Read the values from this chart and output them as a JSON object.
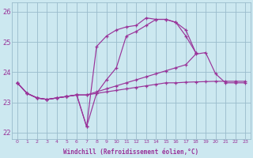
{
  "xlabel": "Windchill (Refroidissement éolien,°C)",
  "bg_color": "#cce8f0",
  "line_color": "#993399",
  "grid_color": "#99bbcc",
  "xlim": [
    -0.5,
    23.5
  ],
  "ylim": [
    21.8,
    26.3
  ],
  "xticks": [
    0,
    1,
    2,
    3,
    4,
    5,
    6,
    7,
    8,
    9,
    10,
    11,
    12,
    13,
    14,
    15,
    16,
    17,
    18,
    19,
    20,
    21,
    22,
    23
  ],
  "yticks": [
    22,
    23,
    24,
    25,
    26
  ],
  "series": {
    "line1": [
      23.65,
      23.3,
      23.15,
      23.1,
      23.15,
      23.2,
      23.25,
      22.2,
      24.85,
      25.2,
      25.4,
      25.5,
      25.55,
      25.8,
      25.75,
      25.75,
      25.65,
      25.4,
      24.65,
      null,
      null,
      null,
      null,
      null
    ],
    "line2": [
      23.65,
      23.3,
      23.15,
      23.1,
      23.15,
      23.2,
      23.25,
      22.2,
      23.3,
      23.75,
      24.15,
      25.2,
      25.35,
      25.55,
      25.75,
      25.75,
      25.65,
      25.2,
      24.65,
      null,
      null,
      null,
      null,
      null
    ],
    "line3": [
      23.65,
      23.3,
      23.15,
      23.1,
      23.15,
      23.2,
      23.25,
      23.25,
      23.35,
      23.45,
      23.55,
      23.65,
      23.75,
      23.85,
      23.95,
      24.05,
      24.15,
      24.25,
      24.6,
      24.65,
      23.95,
      23.65,
      23.65,
      23.65
    ],
    "line4": [
      23.65,
      23.3,
      23.15,
      23.1,
      23.15,
      23.2,
      23.25,
      23.25,
      23.3,
      23.35,
      23.4,
      23.45,
      23.5,
      23.55,
      23.6,
      23.65,
      23.65,
      23.67,
      23.68,
      23.69,
      23.7,
      23.7,
      23.7,
      23.7
    ]
  }
}
